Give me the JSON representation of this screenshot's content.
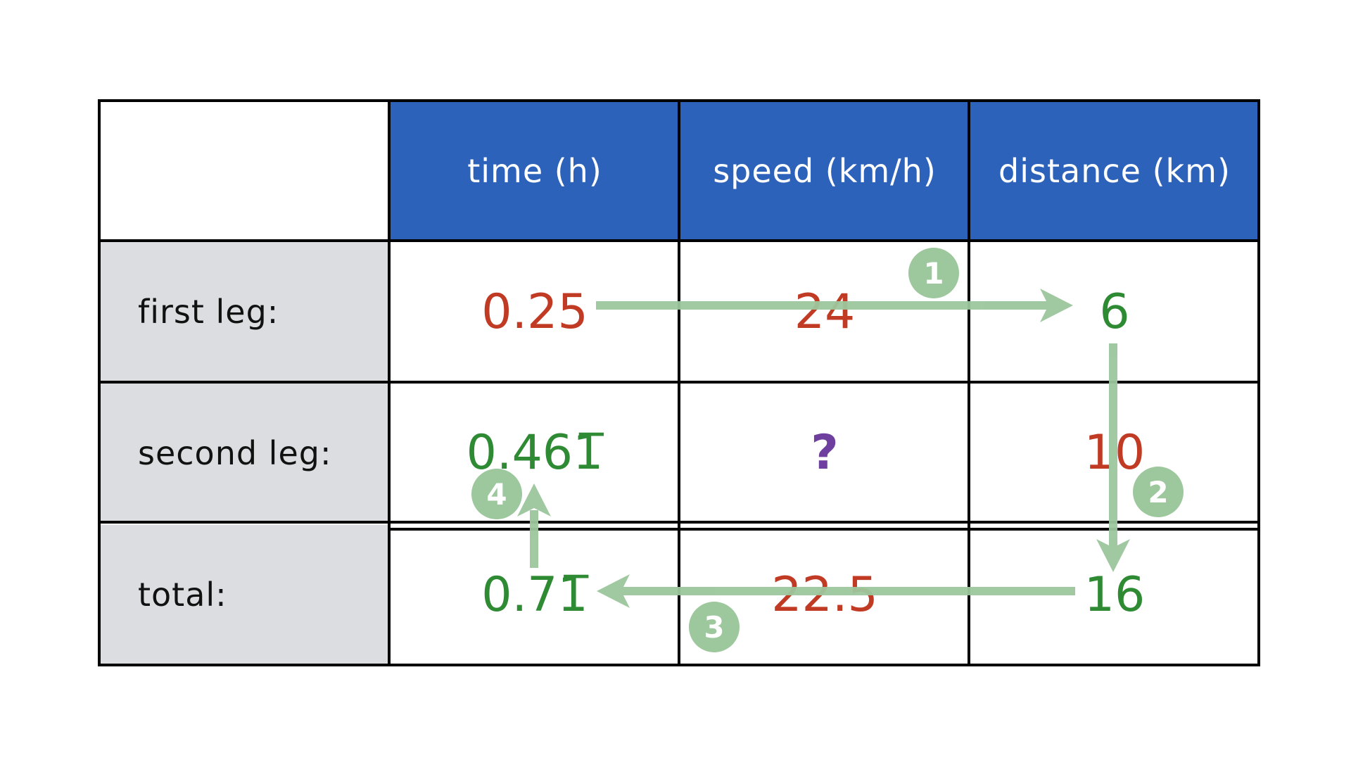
{
  "table": {
    "headers": [
      "time (h)",
      "speed (km/h)",
      "distance (km)"
    ],
    "rows": [
      {
        "label": "first leg:",
        "time": "0.25",
        "speed": "24",
        "distance": "6"
      },
      {
        "label": "second leg:",
        "time": "0.461̅",
        "speed": "?",
        "distance": "10"
      },
      {
        "label": "total:",
        "time": "0.71̅",
        "speed": "22.5",
        "distance": "16"
      }
    ]
  },
  "steps": [
    "1",
    "2",
    "3",
    "4"
  ],
  "colors": {
    "header_bg": "#2d62bb",
    "label_bg": "#dcdde0",
    "given_value": "#c03a24",
    "computed_value": "#2f8a34",
    "unknown_value": "#6e3f9e",
    "arrow": "#9dc79d"
  }
}
